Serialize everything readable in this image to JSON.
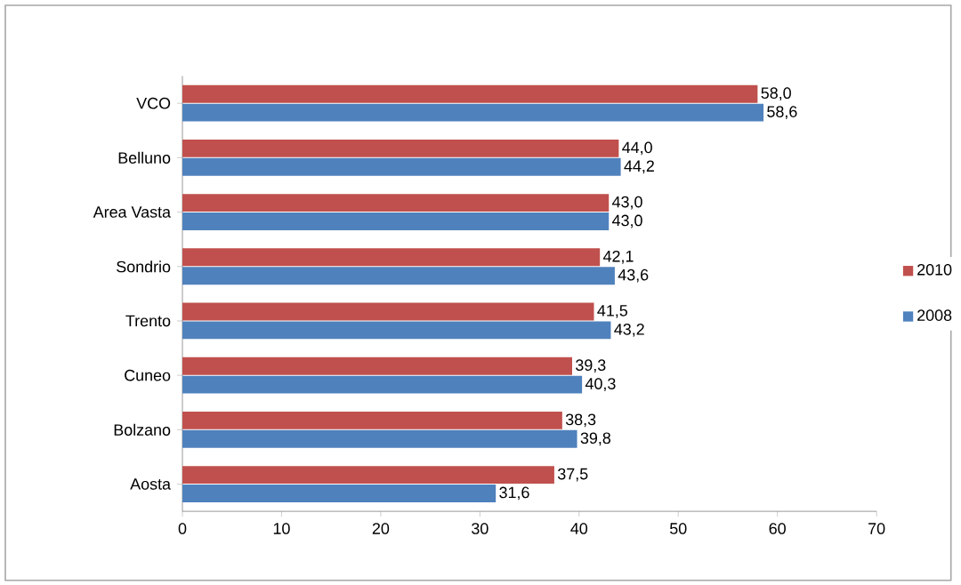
{
  "chart_data": {
    "type": "bar",
    "orientation": "horizontal",
    "categories": [
      "VCO",
      "Belluno",
      "Area Vasta",
      "Sondrio",
      "Trento",
      "Cuneo",
      "Bolzano",
      "Aosta"
    ],
    "series": [
      {
        "name": "2010",
        "color": "#c0504d",
        "values": [
          58.0,
          44.0,
          43.0,
          42.1,
          41.5,
          39.3,
          38.3,
          37.5
        ],
        "value_labels": [
          "58,0",
          "44,0",
          "43,0",
          "42,1",
          "41,5",
          "39,3",
          "38,3",
          "37,5"
        ]
      },
      {
        "name": "2008",
        "color": "#4f81bd",
        "values": [
          58.6,
          44.2,
          43.0,
          43.6,
          43.2,
          40.3,
          39.8,
          31.6
        ],
        "value_labels": [
          "58,6",
          "44,2",
          "43,0",
          "43,6",
          "43,2",
          "40,3",
          "39,8",
          "31,6"
        ]
      }
    ],
    "xlim": [
      0,
      70
    ],
    "xticks": [
      0,
      10,
      20,
      30,
      40,
      50,
      60,
      70
    ],
    "legend": "right",
    "grid": false
  }
}
